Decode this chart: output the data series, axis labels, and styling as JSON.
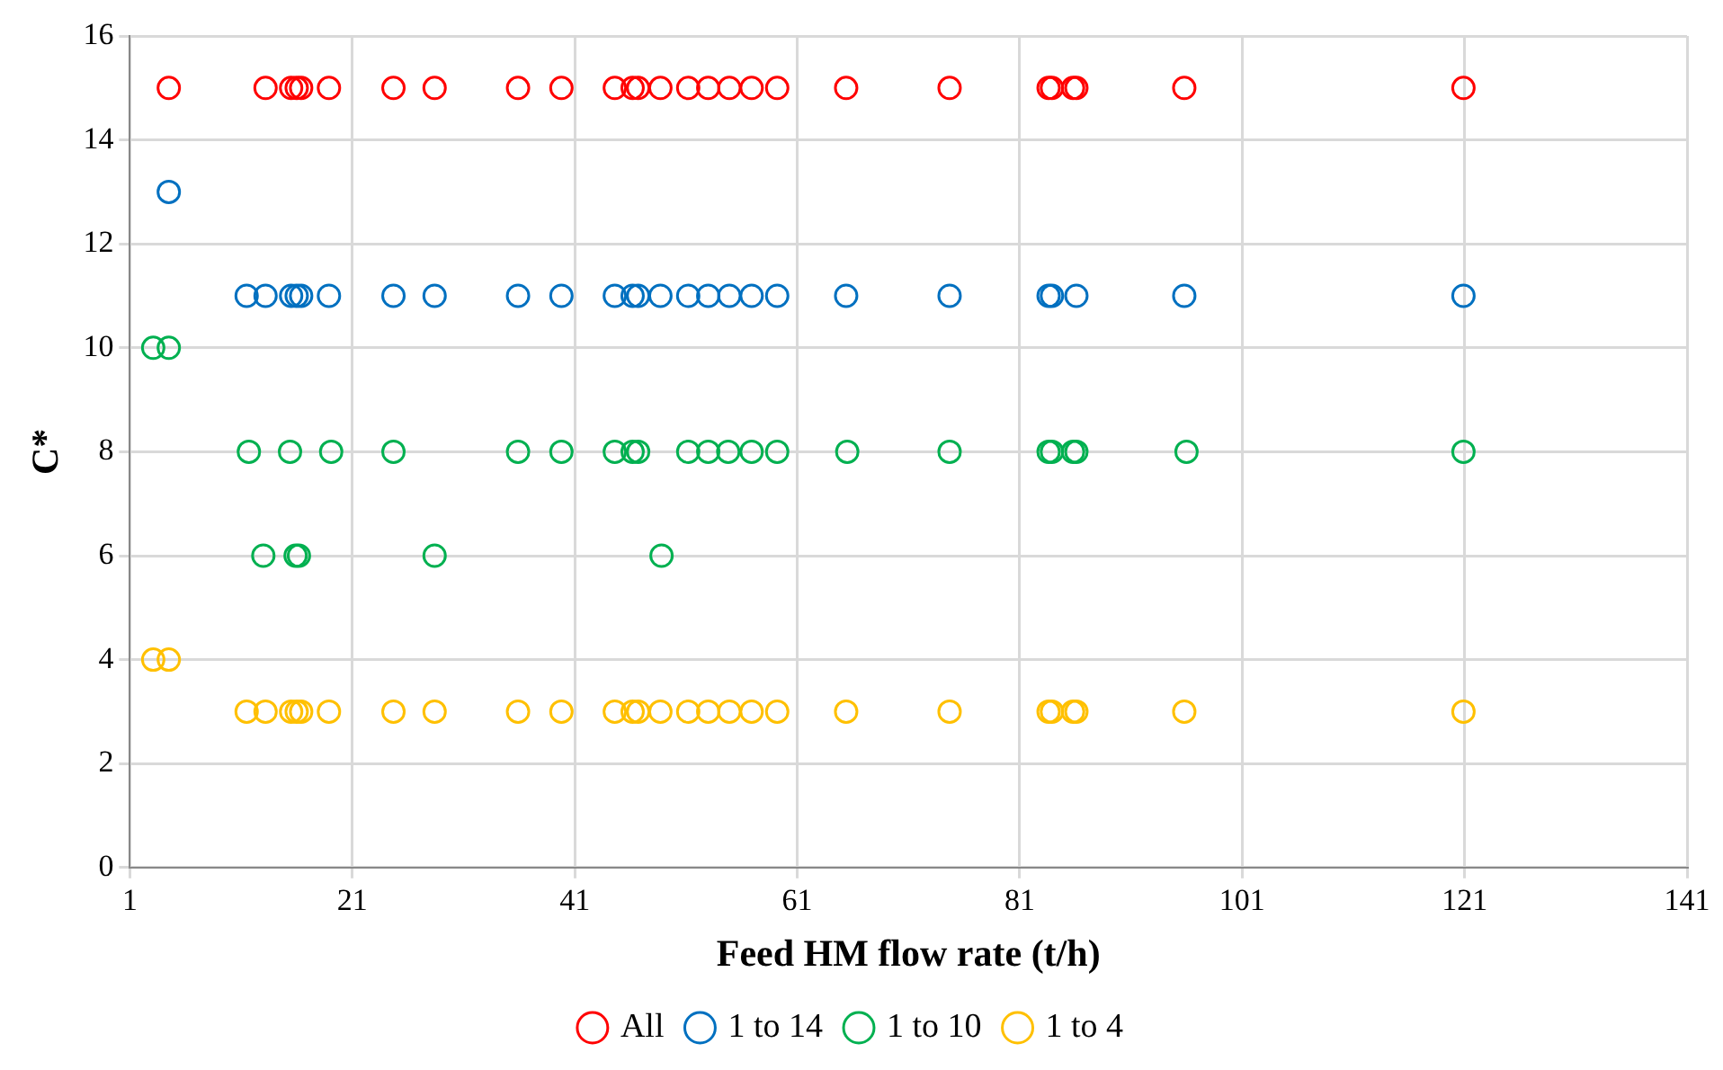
{
  "chart_data": {
    "type": "scatter",
    "xlabel": "Feed HM flow rate (t/h)",
    "ylabel": "C*",
    "xlim": [
      1,
      141
    ],
    "xticks": [
      1,
      21,
      41,
      61,
      81,
      101,
      121,
      141
    ],
    "ylim": [
      0,
      16
    ],
    "yticks": [
      0,
      2,
      4,
      6,
      8,
      10,
      12,
      14,
      16
    ],
    "grid": true,
    "legend": "bottom",
    "marker": "circle",
    "series": [
      {
        "name": "All",
        "color": "#ff0000",
        "x": [
          4.5,
          13.2,
          15.5,
          16.0,
          16.4,
          18.9,
          24.7,
          28.4,
          35.9,
          39.8,
          44.6,
          46.2,
          46.7,
          48.7,
          51.2,
          53.0,
          54.9,
          56.9,
          59.2,
          65.4,
          74.7,
          83.6,
          83.9,
          85.8,
          86.1,
          95.8,
          120.9
        ],
        "values": [
          15,
          15,
          15,
          15,
          15,
          15,
          15,
          15,
          15,
          15,
          15,
          15,
          15,
          15,
          15,
          15,
          15,
          15,
          15,
          15,
          15,
          15,
          15,
          15,
          15,
          15,
          15
        ]
      },
      {
        "name": "1 to 14",
        "color": "#0070c0",
        "x": [
          4.5,
          11.5,
          13.2,
          15.5,
          16.0,
          16.4,
          18.9,
          24.7,
          28.4,
          35.9,
          39.8,
          44.6,
          46.2,
          46.7,
          48.7,
          51.2,
          53.0,
          54.9,
          56.9,
          59.2,
          65.4,
          74.7,
          83.6,
          83.9,
          86.1,
          95.8,
          120.9
        ],
        "values": [
          13,
          11,
          11,
          11,
          11,
          11,
          11,
          11,
          11,
          11,
          11,
          11,
          11,
          11,
          11,
          11,
          11,
          11,
          11,
          11,
          11,
          11,
          11,
          11,
          11,
          11,
          11
        ]
      },
      {
        "name": "1 to 10",
        "color": "#00b050",
        "x": [
          3.1,
          4.5,
          11.7,
          13.0,
          15.4,
          15.9,
          16.2,
          19.1,
          24.7,
          28.4,
          35.9,
          39.8,
          44.6,
          46.2,
          46.7,
          48.8,
          51.2,
          53.0,
          54.8,
          56.9,
          59.2,
          65.5,
          74.7,
          83.6,
          83.9,
          85.8,
          86.1,
          96.0,
          120.9
        ],
        "values": [
          10,
          10,
          8,
          6,
          8,
          6,
          6,
          8,
          8,
          6,
          8,
          8,
          8,
          8,
          8,
          6,
          8,
          8,
          8,
          8,
          8,
          8,
          8,
          8,
          8,
          8,
          8,
          8,
          8
        ]
      },
      {
        "name": "1 to 4",
        "color": "#ffc000",
        "x": [
          3.1,
          4.5,
          11.5,
          13.2,
          15.5,
          16.0,
          16.4,
          18.9,
          24.7,
          28.4,
          35.9,
          39.8,
          44.6,
          46.2,
          46.7,
          48.7,
          51.2,
          53.0,
          54.9,
          56.9,
          59.2,
          65.4,
          74.7,
          83.6,
          83.9,
          85.8,
          86.1,
          95.8,
          120.9
        ],
        "values": [
          4,
          4,
          3,
          3,
          3,
          3,
          3,
          3,
          3,
          3,
          3,
          3,
          3,
          3,
          3,
          3,
          3,
          3,
          3,
          3,
          3,
          3,
          3,
          3,
          3,
          3,
          3,
          3,
          3
        ]
      }
    ]
  }
}
